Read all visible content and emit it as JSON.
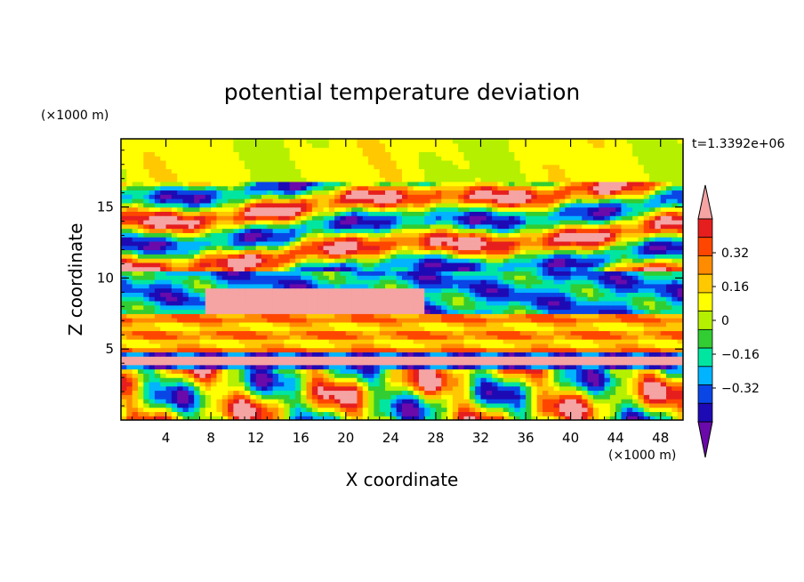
{
  "chart_data": {
    "type": "heatmap",
    "title": "potential temperature deviation",
    "xlabel": "X coordinate",
    "ylabel": "Z coordinate",
    "x_unit": "(×1000 m)",
    "y_unit": "(×1000 m)",
    "time_label": "t=1.3392e+06",
    "xlim": [
      0,
      50
    ],
    "ylim": [
      0,
      19.8
    ],
    "x_ticks": [
      4,
      8,
      12,
      16,
      20,
      24,
      28,
      32,
      36,
      40,
      44,
      48
    ],
    "y_ticks": [
      5,
      10,
      15
    ],
    "colorbar": {
      "levels": [
        -0.48,
        -0.4,
        -0.32,
        -0.24,
        -0.16,
        -0.08,
        0,
        0.08,
        0.16,
        0.24,
        0.32,
        0.4,
        0.48
      ],
      "tick_values": [
        -0.32,
        -0.16,
        0,
        0.16,
        0.32
      ],
      "tick_labels": [
        "−0.32",
        "−0.16",
        "0",
        "0.16",
        "0.32"
      ],
      "colors": [
        "#6a0aaa",
        "#1e0ab4",
        "#0a46e6",
        "#00b4ff",
        "#00e6a0",
        "#32cd32",
        "#b4f000",
        "#ffff00",
        "#ffc800",
        "#ff8c00",
        "#ff4600",
        "#e61e1e",
        "#f5a3a3"
      ]
    }
  }
}
